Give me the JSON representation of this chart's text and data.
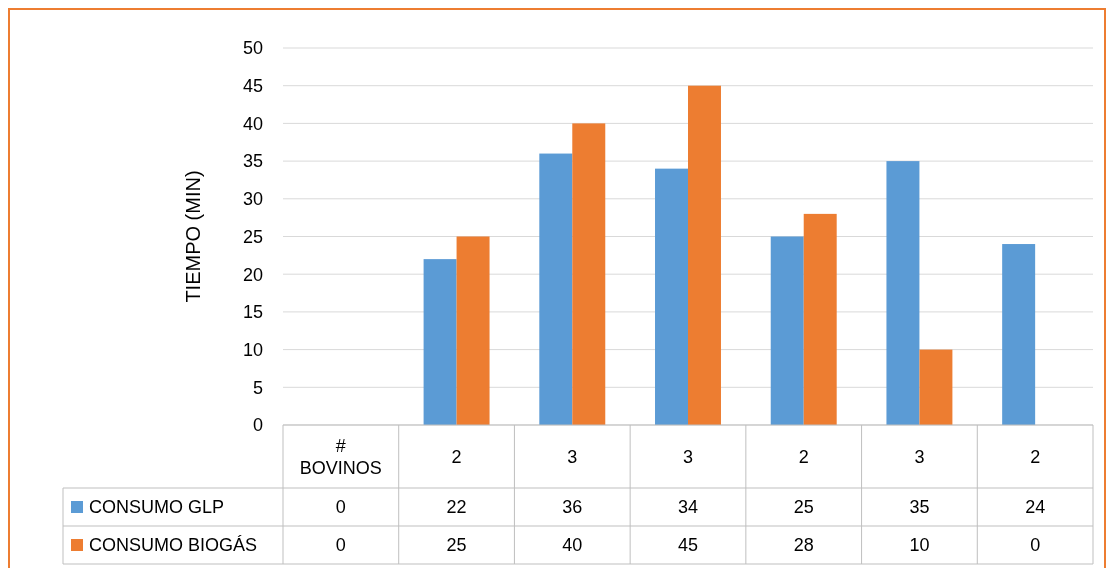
{
  "chart_data": {
    "type": "bar",
    "ylabel": "TIEMPO (MIN)",
    "categories": [
      "# BOVINOS",
      "2",
      "3",
      "3",
      "2",
      "3",
      "2"
    ],
    "series": [
      {
        "name": "CONSUMO GLP",
        "color": "#5b9bd5",
        "values": [
          0,
          22,
          36,
          34,
          25,
          35,
          24
        ]
      },
      {
        "name": "CONSUMO BIOGÁS",
        "color": "#ed7d31",
        "values": [
          0,
          25,
          40,
          45,
          28,
          10,
          0
        ]
      }
    ],
    "ylim": [
      0,
      50
    ],
    "yticks": [
      0,
      5,
      10,
      15,
      20,
      25,
      30,
      35,
      40,
      45,
      50
    ],
    "grid": "y",
    "legend": "bottom",
    "data_labels": true
  }
}
